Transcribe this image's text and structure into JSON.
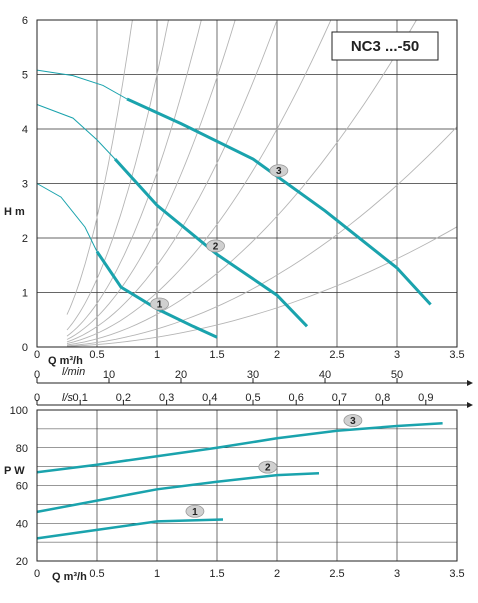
{
  "chart_data": [
    {
      "type": "line",
      "title": "NC3 ...-50",
      "xlabel": "Q  m³/h",
      "ylabel": "H m",
      "xlim": [
        0,
        3.5
      ],
      "ylim": [
        0,
        6
      ],
      "x_ticks": [
        "0",
        "0.5",
        "1",
        "1.5",
        "2",
        "2.5",
        "3",
        "3.5"
      ],
      "y_ticks": [
        "0",
        "1",
        "2",
        "3",
        "4",
        "5",
        "6"
      ],
      "grid": true,
      "flow_axes": [
        {
          "label": "l/min",
          "max": 58.33,
          "ticks": [
            "0",
            "10",
            "20",
            "30",
            "40",
            "50"
          ]
        },
        {
          "label": "l/s",
          "max": 0.9722,
          "ticks": [
            "0",
            "0.1",
            "0.2",
            "0.3",
            "0.4",
            "0.5",
            "0.6",
            "0.7",
            "0.8",
            "0.9"
          ]
        }
      ],
      "series": [
        {
          "name": "1",
          "thin": [
            [
              0,
              3.0
            ],
            [
              0.2,
              2.75
            ],
            [
              0.4,
              2.2
            ],
            [
              0.5,
              1.75
            ]
          ],
          "bold": [
            [
              0.5,
              1.75
            ],
            [
              0.7,
              1.1
            ],
            [
              1.0,
              0.7
            ],
            [
              1.3,
              0.38
            ],
            [
              1.5,
              0.18
            ]
          ]
        },
        {
          "name": "2",
          "thin": [
            [
              0,
              4.45
            ],
            [
              0.3,
              4.2
            ],
            [
              0.5,
              3.8
            ],
            [
              0.65,
              3.45
            ]
          ],
          "bold": [
            [
              0.65,
              3.45
            ],
            [
              1.0,
              2.6
            ],
            [
              1.5,
              1.7
            ],
            [
              2.0,
              0.95
            ],
            [
              2.25,
              0.38
            ]
          ]
        },
        {
          "name": "3",
          "thin": [
            [
              0,
              5.08
            ],
            [
              0.3,
              4.98
            ],
            [
              0.55,
              4.8
            ],
            [
              0.75,
              4.55
            ]
          ],
          "bold": [
            [
              0.75,
              4.55
            ],
            [
              1.2,
              4.1
            ],
            [
              1.8,
              3.45
            ],
            [
              2.4,
              2.5
            ],
            [
              3.0,
              1.45
            ],
            [
              3.28,
              0.78
            ]
          ]
        }
      ]
    },
    {
      "type": "line",
      "xlabel": "Q  m³/h",
      "ylabel": "P W",
      "xlim": [
        0,
        3.5
      ],
      "ylim": [
        20,
        100
      ],
      "x_ticks": [
        "0",
        "0.5",
        "1",
        "1.5",
        "2",
        "2.5",
        "3",
        "3.5"
      ],
      "y_ticks": [
        "20",
        "40",
        "60",
        "80",
        "100"
      ],
      "grid": true,
      "series": [
        {
          "name": "1",
          "points": [
            [
              0,
              32
            ],
            [
              0.5,
              36.5
            ],
            [
              1.0,
              41
            ],
            [
              1.55,
              42
            ]
          ]
        },
        {
          "name": "2",
          "points": [
            [
              0,
              46
            ],
            [
              0.5,
              52
            ],
            [
              1.0,
              58
            ],
            [
              1.5,
              62
            ],
            [
              2.0,
              65.5
            ],
            [
              2.35,
              66.5
            ]
          ]
        },
        {
          "name": "3",
          "points": [
            [
              0,
              67
            ],
            [
              0.5,
              71
            ],
            [
              1.0,
              75.5
            ],
            [
              1.5,
              80
            ],
            [
              2.0,
              85
            ],
            [
              2.5,
              89
            ],
            [
              3.0,
              91.5
            ],
            [
              3.38,
              93
            ]
          ]
        }
      ]
    }
  ]
}
